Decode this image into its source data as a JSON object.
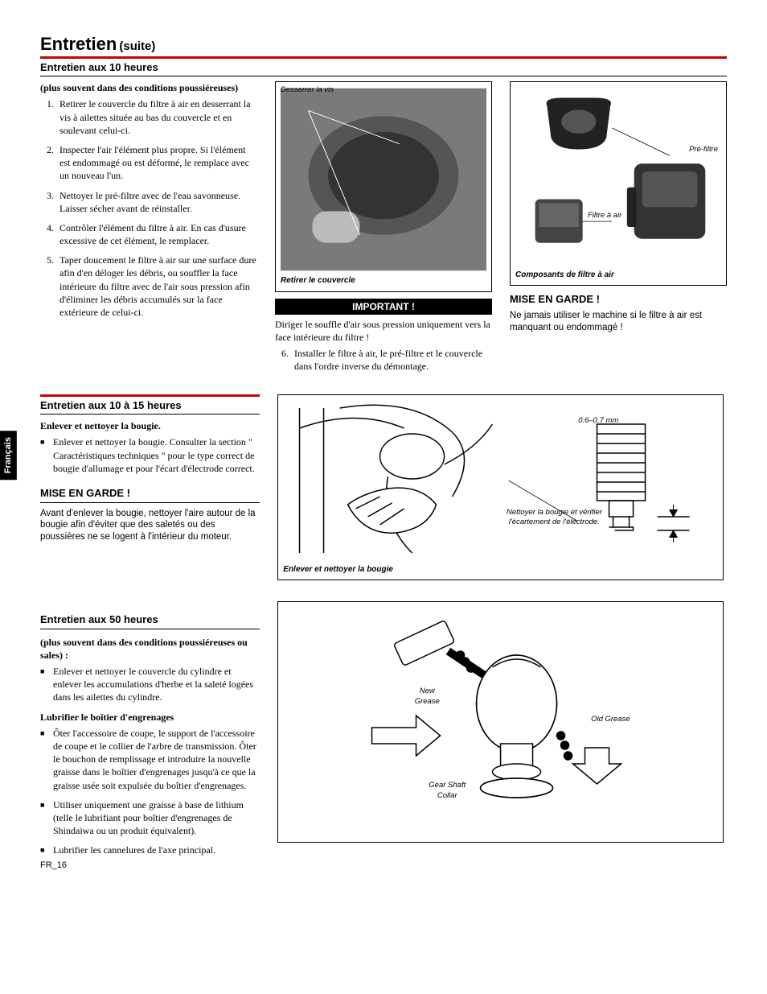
{
  "title": "Entretien",
  "title_suite": "(suite)",
  "section10": {
    "heading": "Entretien aux 10 heures",
    "intro": "(plus souvent dans des conditions poussiéreuses)",
    "items": [
      "Retirer le couvercle du filtre à air en desserrant la vis à ailettes située au bas du couvercle et en soulevant celui-ci.",
      "Inspecter l'air l'élément plus propre. Si l'élément est endommagé ou est déformé, le remplace avec un nouveau l'un.",
      "Nettoyer le pré-filtre avec de l'eau savonneuse. Laisser sécher avant de réinstaller.",
      "Contrôler l'élément du filtre à air. En cas d'usure excessive de cet élément, le remplacer.",
      "Taper doucement le filtre à air sur une surface dure afin d'en déloger les débris, ou souffler la face intérieure du filtre avec de l'air sous pression afin d'éliminer les débris accumulés sur la face extérieure de celui-ci."
    ],
    "item6": "Installer le filtre à air, le pré-filtre et le couvercle dans l'ordre inverse du démontage.",
    "fig1": {
      "label_top": "Desserrer la vis",
      "caption": "Retirer le couvercle"
    },
    "fig2": {
      "label_pre": "Pré-filtre",
      "label_filtre": "Filtre à air",
      "caption": "Composants de filtre à air"
    },
    "important_title": "IMPORTANT !",
    "important_body": "Diriger le souffle d'air sous pression uniquement vers la face intérieure du filtre !",
    "warn_title": "MISE EN GARDE !",
    "warn_body": "Ne jamais utiliser le machine si le filtre à air est manquant ou endommagé !"
  },
  "section1015": {
    "heading": "Entretien aux 10 à 15 heures",
    "sub": "Enlever et nettoyer la bougie.",
    "bullet": "Enlever et nettoyer la bougie. Consulter la section \" Caractéristiques techniques \" pour le type correct de bougie d'allumage et pour l'écart d'électrode correct.",
    "warn_title": "MISE EN GARDE !",
    "warn_body": "Avant d'enlever la bougie, nettoyer l'aire autour de la bougie afin d'éviter que des saletés ou des poussières ne se logent à l'intérieur du moteur.",
    "fig": {
      "gap": "0.6–0.7 mm",
      "note": "Nettoyer la bougie et vérifier l'écartement de l'électrode.",
      "caption": "Enlever et nettoyer la bougie"
    }
  },
  "section50": {
    "heading": "Entretien aux 50 heures",
    "intro": "(plus souvent dans des conditions poussiéreuses ou sales) :",
    "b1": "Enlever et nettoyer le couvercle du cylindre et enlever les accumulations d'herbe et la saleté logées dans les ailettes du cylindre.",
    "sub2": "Lubrifier le boîtier d'engrenages",
    "b2": "Ôter l'accessoire de coupe, le support de l'accessoire de coupe et le collier de l'arbre de transmission. Ôter le bouchon de remplissage et introduire la nouvelle graisse dans le boîtier d'engrenages jusqu'à ce que la graisse usée soit expulsée du boîtier d'engrenages.",
    "b3": "Utiliser uniquement une graisse à base de lithium (telle le lubrifiant pour boîtier d'engrenages de Shindaiwa ou un produit équivalent).",
    "b4": "Lubrifier les cannelures de l'axe principal.",
    "fig": {
      "new": "New Grease",
      "old": "Old Grease",
      "collar": "Gear Shaft Collar"
    }
  },
  "side_tab": "Français",
  "page_num": "FR_16"
}
